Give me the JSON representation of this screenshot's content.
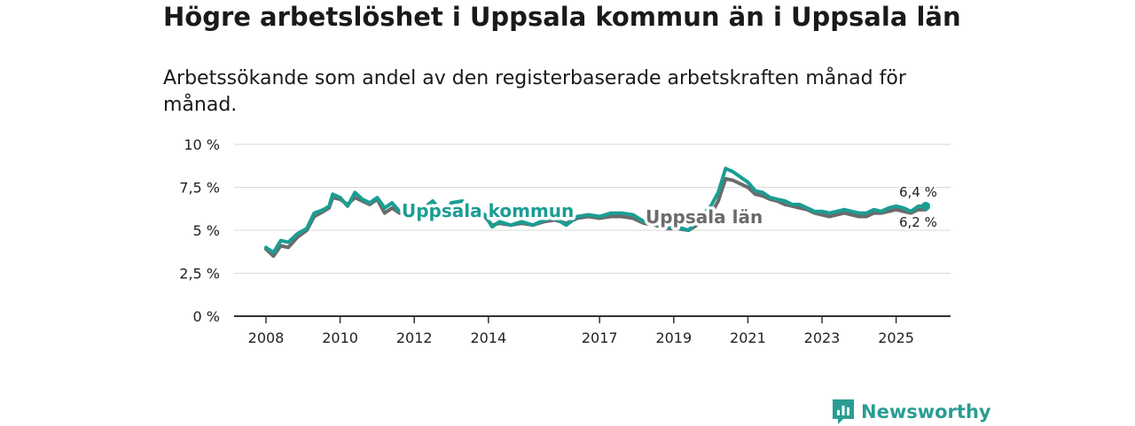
{
  "header": {
    "title": "Högre arbetslöshet i Uppsala kommun än i Uppsala län",
    "subtitle": "Arbetssökande som andel av den registerbaserade arbetskraften månad för månad."
  },
  "brand": {
    "name": "Newsworthy"
  },
  "colors": {
    "kommun": "#1a9e93",
    "lan": "#6b6b6b",
    "grid": "#d9d9d9",
    "axis": "#333333",
    "brand": "#2a9d93"
  },
  "chart_data": {
    "type": "line",
    "title": "Högre arbetslöshet i Uppsala kommun än i Uppsala län",
    "subtitle": "Arbetssökande som andel av den registerbaserade arbetskraften månad för månad.",
    "xlabel": "",
    "ylabel": "",
    "xlim": [
      2008,
      2026.6
    ],
    "ylim": [
      0,
      10
    ],
    "y_ticks": [
      0,
      2.5,
      5,
      7.5,
      10
    ],
    "y_tick_labels": [
      "0 %",
      "2,5 %",
      "5 %",
      "7,5 %",
      "10 %"
    ],
    "x_ticks": [
      2008,
      2010,
      2012,
      2014,
      2017,
      2019,
      2021,
      2023,
      2025
    ],
    "x_tick_labels": [
      "2008",
      "2010",
      "2012",
      "2014",
      "2017",
      "2019",
      "2021",
      "2023",
      "2025"
    ],
    "grid": true,
    "end_labels": [
      "6,4 %",
      "6,2 %"
    ],
    "series": [
      {
        "name": "Uppsala kommun",
        "label": "Uppsala kommun",
        "x": [
          2008,
          2008.2,
          2008.4,
          2008.6,
          2008.85,
          2009.1,
          2009.3,
          2009.55,
          2009.7,
          2009.8,
          2010.0,
          2010.2,
          2010.4,
          2010.6,
          2010.8,
          2011.0,
          2011.2,
          2011.4,
          2011.6,
          2011.8,
          2012.0,
          2012.2,
          2012.5,
          2012.8,
          2013.0,
          2013.3,
          2013.6,
          2013.9,
          2014.1,
          2014.3,
          2014.6,
          2014.9,
          2015.2,
          2015.5,
          2015.8,
          2016.1,
          2016.4,
          2016.7,
          2017.0,
          2017.3,
          2017.6,
          2017.9,
          2018.2,
          2018.5,
          2018.8,
          2019.1,
          2019.4,
          2019.7,
          2020.0,
          2020.2,
          2020.4,
          2020.6,
          2020.8,
          2021.0,
          2021.2,
          2021.4,
          2021.6,
          2021.8,
          2022.0,
          2022.2,
          2022.4,
          2022.6,
          2022.8,
          2023.0,
          2023.2,
          2023.4,
          2023.6,
          2023.8,
          2024.0,
          2024.2,
          2024.4,
          2024.6,
          2024.8,
          2025.0,
          2025.2,
          2025.4,
          2025.6,
          2025.8
        ],
        "values": [
          4.0,
          3.7,
          4.4,
          4.3,
          4.8,
          5.1,
          6.0,
          6.2,
          6.4,
          7.1,
          6.9,
          6.4,
          7.2,
          6.8,
          6.6,
          6.9,
          6.3,
          6.6,
          6.1,
          6.3,
          6.5,
          6.2,
          6.7,
          5.9,
          6.6,
          6.7,
          6.3,
          5.9,
          5.2,
          5.5,
          5.3,
          5.5,
          5.3,
          5.6,
          5.7,
          5.3,
          5.8,
          5.9,
          5.8,
          6.0,
          6.0,
          5.9,
          5.5,
          5.4,
          5.2,
          5.2,
          5.0,
          5.7,
          6.4,
          7.2,
          8.6,
          8.4,
          8.1,
          7.8,
          7.3,
          7.2,
          6.9,
          6.8,
          6.7,
          6.5,
          6.5,
          6.3,
          6.1,
          6.1,
          6.0,
          6.1,
          6.2,
          6.1,
          6.0,
          6.0,
          6.2,
          6.1,
          6.3,
          6.4,
          6.3,
          6.1,
          6.4,
          6.4
        ]
      },
      {
        "name": "Uppsala län",
        "label": "Uppsala län",
        "x": [
          2008,
          2008.2,
          2008.4,
          2008.6,
          2008.85,
          2009.1,
          2009.3,
          2009.55,
          2009.7,
          2009.8,
          2010.0,
          2010.2,
          2010.4,
          2010.6,
          2010.8,
          2011.0,
          2011.2,
          2011.4,
          2011.6,
          2011.8,
          2012.0,
          2012.2,
          2012.5,
          2012.8,
          2013.0,
          2013.3,
          2013.6,
          2013.9,
          2014.1,
          2014.3,
          2014.6,
          2014.9,
          2015.2,
          2015.5,
          2015.8,
          2016.1,
          2016.4,
          2016.7,
          2017.0,
          2017.3,
          2017.6,
          2017.9,
          2018.2,
          2018.5,
          2018.8,
          2019.1,
          2019.4,
          2019.7,
          2020.0,
          2020.2,
          2020.4,
          2020.6,
          2020.8,
          2021.0,
          2021.2,
          2021.4,
          2021.6,
          2021.8,
          2022.0,
          2022.2,
          2022.4,
          2022.6,
          2022.8,
          2023.0,
          2023.2,
          2023.4,
          2023.6,
          2023.8,
          2024.0,
          2024.2,
          2024.4,
          2024.6,
          2024.8,
          2025.0,
          2025.2,
          2025.4,
          2025.6,
          2025.8
        ],
        "values": [
          3.9,
          3.5,
          4.1,
          4.0,
          4.6,
          5.0,
          5.8,
          6.1,
          6.3,
          6.9,
          6.8,
          6.5,
          6.9,
          6.7,
          6.5,
          6.8,
          6.0,
          6.3,
          6.0,
          6.1,
          6.3,
          6.0,
          6.4,
          5.8,
          6.3,
          6.4,
          6.1,
          5.8,
          5.3,
          5.4,
          5.3,
          5.4,
          5.3,
          5.5,
          5.6,
          5.4,
          5.7,
          5.8,
          5.7,
          5.8,
          5.8,
          5.7,
          5.4,
          5.3,
          5.1,
          5.1,
          5.0,
          5.4,
          5.9,
          6.7,
          8.0,
          7.9,
          7.7,
          7.5,
          7.1,
          7.0,
          6.8,
          6.7,
          6.5,
          6.4,
          6.3,
          6.2,
          6.0,
          5.9,
          5.8,
          5.9,
          6.0,
          5.9,
          5.8,
          5.8,
          6.0,
          6.0,
          6.1,
          6.2,
          6.1,
          6.0,
          6.2,
          6.2
        ]
      }
    ]
  }
}
